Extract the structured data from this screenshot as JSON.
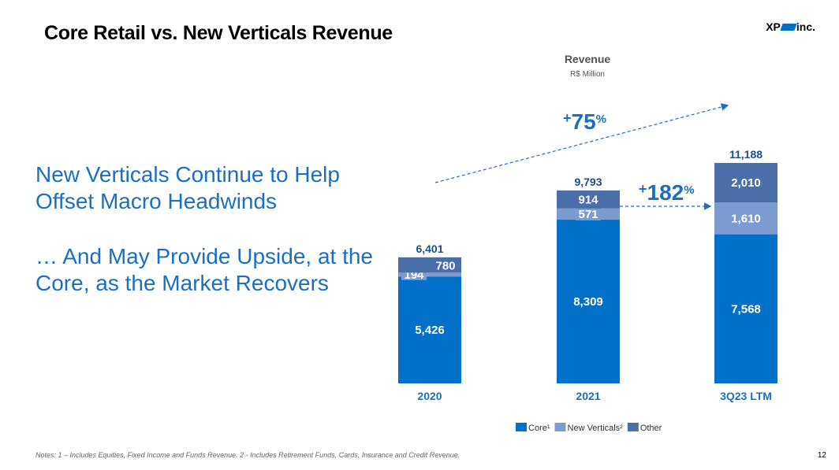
{
  "title": "Core Retail vs. New Verticals Revenue",
  "logo": {
    "left": "XP",
    "right": "inc."
  },
  "headline": {
    "line1": "New Verticals Continue to Help Offset Macro Headwinds",
    "line2": "… And May Provide Upside, at the Core, as the Market Recovers"
  },
  "notes": "Notes: 1 – Includes Equities, Fixed Income and Funds Revenue. 2 - Includes Retirement Funds, Cards, Insurance and Credit Revenue.",
  "page_number": "12",
  "colors": {
    "core": "#0070c8",
    "new_verticals": "#7b9bd1",
    "other": "#4a6ea8",
    "accent": "#1a6fc4"
  },
  "chart_data": {
    "type": "bar",
    "stacked": true,
    "title": "Revenue",
    "subtitle": "R$ Million",
    "categories": [
      "2020",
      "2021",
      "3Q23 LTM"
    ],
    "series": [
      {
        "name": "Core¹",
        "values": [
          5426,
          8309,
          7568
        ],
        "labels": [
          "5,426",
          "8,309",
          "7,568"
        ]
      },
      {
        "name": "New Verticals²",
        "values": [
          194,
          571,
          1610
        ],
        "labels": [
          "194",
          "571",
          "1,610"
        ]
      },
      {
        "name": "Other",
        "values": [
          780,
          914,
          2010
        ],
        "labels": [
          "780",
          "914",
          "2,010"
        ]
      }
    ],
    "totals": [
      "6,401",
      "9,793",
      "11,188"
    ],
    "annotations": [
      {
        "text": "75",
        "sign": "+",
        "suffix": "%",
        "from": "2020",
        "to": "3Q23 LTM"
      },
      {
        "text": "182",
        "sign": "+",
        "suffix": "%",
        "from": "2021",
        "to": "3Q23 LTM"
      }
    ],
    "ylim": [
      0,
      11188
    ],
    "legend_position": "bottom"
  }
}
